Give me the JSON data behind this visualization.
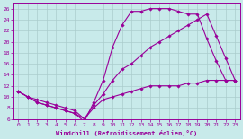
{
  "xlabel": "Windchill (Refroidissement éolien,°C)",
  "bg_color": "#c8eaea",
  "line_color": "#990099",
  "grid_color": "#aacccc",
  "xlim": [
    -0.5,
    23.5
  ],
  "ylim": [
    6,
    27
  ],
  "xticks": [
    0,
    1,
    2,
    3,
    4,
    5,
    6,
    7,
    8,
    9,
    10,
    11,
    12,
    13,
    14,
    15,
    16,
    17,
    18,
    19,
    20,
    21,
    22,
    23
  ],
  "yticks": [
    6,
    8,
    10,
    12,
    14,
    16,
    18,
    20,
    22,
    24,
    26
  ],
  "line1_x": [
    0,
    1,
    2,
    3,
    4,
    5,
    6,
    7,
    8,
    9,
    10,
    11,
    12,
    13,
    14,
    15,
    16,
    17,
    18,
    19,
    20,
    21,
    22,
    23
  ],
  "line1_y": [
    11,
    10,
    9,
    8.5,
    8,
    7.5,
    7,
    5.5,
    9,
    13,
    19,
    23,
    25.5,
    25.5,
    26,
    26,
    26,
    25.5,
    25,
    25,
    20.5,
    16.5,
    13,
    13
  ],
  "line2_x": [
    0,
    1,
    2,
    3,
    4,
    5,
    6,
    7,
    8,
    9,
    10,
    11,
    12,
    13,
    14,
    15,
    16,
    17,
    18,
    19,
    20,
    21,
    22,
    23
  ],
  "line2_y": [
    11,
    10,
    9,
    8.5,
    8,
    7.5,
    7,
    6,
    8.5,
    10.5,
    13,
    15,
    16,
    17.5,
    19,
    20,
    21,
    22,
    23,
    24,
    25,
    21,
    17,
    13
  ],
  "line3_x": [
    0,
    1,
    2,
    3,
    4,
    5,
    6,
    7,
    8,
    9,
    10,
    11,
    12,
    13,
    14,
    15,
    16,
    17,
    18,
    19,
    20,
    21,
    22,
    23
  ],
  "line3_y": [
    11,
    10,
    9.5,
    9,
    8.5,
    8,
    7.5,
    6,
    8,
    9.5,
    10,
    10.5,
    11,
    11.5,
    12,
    12,
    12,
    12,
    12.5,
    12.5,
    13,
    13,
    13,
    13
  ]
}
